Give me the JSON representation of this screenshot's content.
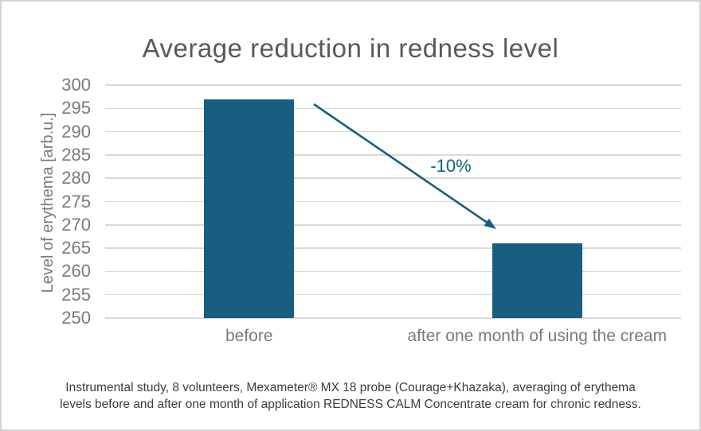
{
  "chart_data": {
    "type": "bar",
    "title": "Average reduction in redness level",
    "xlabel": "",
    "ylabel": "Level of erythema [arb.u.]",
    "categories": [
      "before",
      "after one month of using the cream"
    ],
    "values": [
      297,
      266
    ],
    "ylim": [
      250,
      300
    ],
    "yticks": [
      250,
      255,
      260,
      265,
      270,
      275,
      280,
      285,
      290,
      295,
      300
    ],
    "grid": true,
    "legend": false,
    "bar_color": "#175e80",
    "annotation": {
      "type": "arrow",
      "text": "-10%",
      "color": "#175e80"
    }
  },
  "colors": {
    "accent": "#175e80",
    "title": "#595959",
    "axis_text": "#7a7a7a",
    "gridline": "#d9d9d9",
    "footnote_text": "#3d3d3d",
    "frame_border": "#d4d4d4"
  },
  "footnote": {
    "line1": "Instrumental study, 8 volunteers, Mexameter® MX 18 probe (Courage+Khazaka), averaging of erythema",
    "line2": "levels before and after one month of application REDNESS CALM Concentrate cream for chronic redness."
  }
}
